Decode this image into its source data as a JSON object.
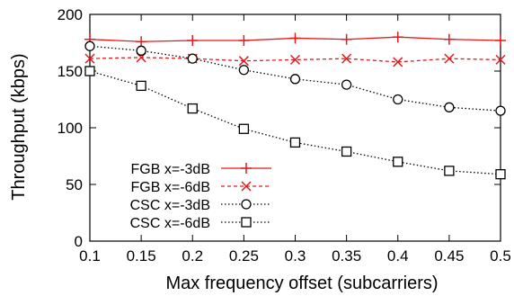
{
  "chart_data": {
    "type": "line",
    "xlabel": "Max frequency offset (subcarriers)",
    "ylabel": "Throughput (kbps)",
    "xlim": [
      0.1,
      0.5
    ],
    "ylim": [
      0,
      200
    ],
    "xticks": [
      "0.1",
      "0.15",
      "0.2",
      "0.25",
      "0.3",
      "0.35",
      "0.4",
      "0.45",
      "0.5"
    ],
    "yticks": [
      "0",
      "50",
      "100",
      "150",
      "200"
    ],
    "grid": false,
    "legend_position": "bottom-left",
    "x": [
      0.1,
      0.15,
      0.2,
      0.25,
      0.3,
      0.35,
      0.4,
      0.45,
      0.5
    ],
    "series": [
      {
        "name": "FGB x=-3dB",
        "values": [
          178,
          176,
          177,
          177,
          179,
          178,
          180,
          178,
          177
        ],
        "color": "#e41a1c",
        "marker": "plus",
        "dash": "solid"
      },
      {
        "name": "FGB x=-6dB",
        "values": [
          161,
          162,
          161,
          159,
          160,
          161,
          158,
          161,
          160
        ],
        "color": "#e41a1c",
        "marker": "x",
        "dash": "dashed"
      },
      {
        "name": "CSC x=-3dB",
        "values": [
          172,
          168,
          161,
          151,
          143,
          138,
          125,
          118,
          115
        ],
        "color": "#000000",
        "marker": "circle",
        "dash": "dotted"
      },
      {
        "name": "CSC x=-6dB",
        "values": [
          150,
          137,
          117,
          99,
          87,
          79,
          70,
          62,
          59
        ],
        "color": "#000000",
        "marker": "square",
        "dash": "dotted"
      }
    ]
  }
}
